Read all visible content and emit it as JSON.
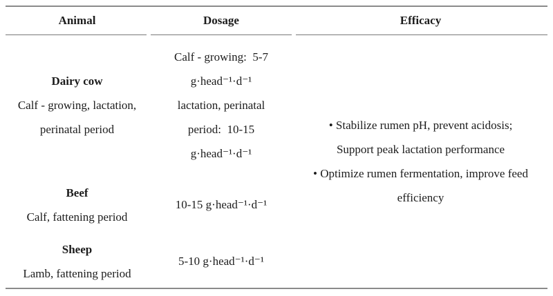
{
  "table": {
    "columns": [
      {
        "label": "Animal"
      },
      {
        "label": "Dosage"
      },
      {
        "label": "Efficacy"
      }
    ],
    "rows": [
      {
        "animal_name": "Dairy cow",
        "animal_detail": [
          "Calf - growing, lactation,",
          "perinatal period"
        ],
        "dosage": [
          "Calf - growing: 5-7",
          "g·head⁻¹·d⁻¹",
          "lactation, perinatal",
          "period: 10-15",
          "g·head⁻¹·d⁻¹"
        ]
      },
      {
        "animal_name": "Beef",
        "animal_detail": [
          "Calf, fattening period"
        ],
        "dosage": [
          "10-15 g·head⁻¹·d⁻¹"
        ]
      },
      {
        "animal_name": "Sheep",
        "animal_detail": [
          "Lamb, fattening period"
        ],
        "dosage": [
          "5-10 g·head⁻¹·d⁻¹"
        ]
      }
    ],
    "efficacy": [
      "• Stabilize rumen pH, prevent acidosis;",
      "Support peak lactation performance",
      "• Optimize rumen fermentation, improve feed",
      "efficiency"
    ]
  },
  "colors": {
    "text": "#1c1c1c",
    "rule_thick": "#8a8a8a",
    "rule_thin": "#777777",
    "background": "#ffffff"
  }
}
